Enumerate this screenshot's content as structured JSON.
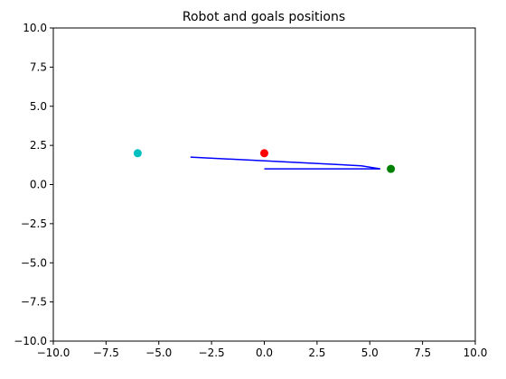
{
  "chart_data": {
    "type": "scatter",
    "title": "Robot and goals positions",
    "xlabel": "",
    "ylabel": "",
    "xlim": [
      -10,
      10
    ],
    "ylim": [
      -10,
      10
    ],
    "grid": false,
    "x_ticks": [
      -10.0,
      -7.5,
      -5.0,
      -2.5,
      0.0,
      2.5,
      5.0,
      7.5,
      10.0
    ],
    "x_tick_labels": [
      "−10.0",
      "−7.5",
      "−5.0",
      "−2.5",
      "0.0",
      "2.5",
      "5.0",
      "7.5",
      "10.0"
    ],
    "y_ticks": [
      10.0,
      7.5,
      5.0,
      2.5,
      0.0,
      -2.5,
      -5.0,
      -7.5,
      -10.0
    ],
    "y_tick_labels": [
      "10.0",
      "7.5",
      "5.0",
      "2.5",
      "0.0",
      "−2.5",
      "−5.0",
      "−7.5",
      "−10.0"
    ],
    "points": [
      {
        "x": -6.0,
        "y": 2.0,
        "color": "#00bfbf"
      },
      {
        "x": 0.0,
        "y": 2.0,
        "color": "#ff0000"
      },
      {
        "x": 6.0,
        "y": 1.0,
        "color": "#008000"
      }
    ],
    "path": {
      "color": "#0000ff",
      "x": [
        0.0,
        5.5,
        4.6,
        -3.5
      ],
      "y": [
        1.0,
        1.0,
        1.2,
        1.75
      ]
    }
  }
}
